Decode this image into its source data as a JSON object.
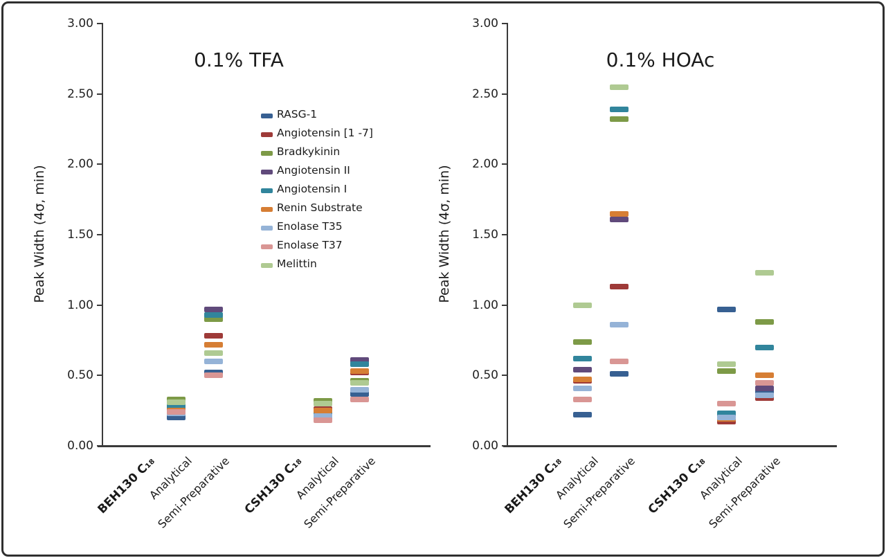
{
  "figure": {
    "ylabel": "Peak Width (4σ, min)",
    "y_tick_labels": [
      "0.00",
      "0.50",
      "1.00",
      "1.50",
      "2.00",
      "2.50",
      "3.00"
    ]
  },
  "chart_data": [
    {
      "type": "scatter",
      "title": "0.1% TFA",
      "ylabel": "Peak Width (4σ, min)",
      "ylim": [
        0.0,
        3.0
      ],
      "yticks": [
        0.0,
        0.5,
        1.0,
        1.5,
        2.0,
        2.5,
        3.0
      ],
      "grid": false,
      "legend_position": "inside-upper-right",
      "legend_visible": true,
      "x_tick_labels": [
        {
          "text": "BEH130 C₁₈",
          "bold": true
        },
        {
          "text": "Analytical",
          "bold": false
        },
        {
          "text": "Semi-Preparative",
          "bold": false
        },
        {
          "text": "CSH130 C₁₈",
          "bold": true
        },
        {
          "text": "Analytical",
          "bold": false
        },
        {
          "text": "Semi-Preparative",
          "bold": false
        }
      ],
      "categories": [
        "BEH130 C₁₈ Analytical",
        "BEH130 C₁₈ Semi-Preparative",
        "CSH130 C₁₈ Analytical",
        "CSH130 C₁₈ Semi-Preparative"
      ],
      "series": [
        {
          "name": "RASG-1",
          "color": "#376092",
          "values": [
            0.2,
            0.52,
            0.2,
            0.37
          ]
        },
        {
          "name": "Angiotensin [1 -7]",
          "color": "#9E3A38",
          "values": [
            0.24,
            0.78,
            0.26,
            0.52
          ]
        },
        {
          "name": "Bradkykinin",
          "color": "#7D9A47",
          "values": [
            0.33,
            0.9,
            0.32,
            0.46
          ]
        },
        {
          "name": "Angiotensin II",
          "color": "#604A7B",
          "values": [
            0.27,
            0.97,
            0.24,
            0.61
          ]
        },
        {
          "name": "Angiotensin I",
          "color": "#31859C",
          "values": [
            0.28,
            0.93,
            0.23,
            0.58
          ]
        },
        {
          "name": "Renin Substrate",
          "color": "#D67E34",
          "values": [
            0.25,
            0.72,
            0.25,
            0.53
          ]
        },
        {
          "name": "Enolase T35",
          "color": "#95B3D7",
          "values": [
            0.23,
            0.6,
            0.21,
            0.4
          ]
        },
        {
          "name": "Enolase T37",
          "color": "#D99694",
          "values": [
            0.24,
            0.5,
            0.18,
            0.33
          ]
        },
        {
          "name": "Melittin",
          "color": "#AFCA92",
          "values": [
            0.31,
            0.66,
            0.3,
            0.45
          ]
        }
      ]
    },
    {
      "type": "scatter",
      "title": "0.1% HOAc",
      "ylabel": "Peak Width (4σ, min)",
      "ylim": [
        0.0,
        3.0
      ],
      "yticks": [
        0.0,
        0.5,
        1.0,
        1.5,
        2.0,
        2.5,
        3.0
      ],
      "grid": false,
      "legend_visible": false,
      "x_tick_labels": [
        {
          "text": "BEH130 C₁₈",
          "bold": true
        },
        {
          "text": "Analytical",
          "bold": false
        },
        {
          "text": "Semi-Preparative",
          "bold": false
        },
        {
          "text": "CSH130 C₁₈",
          "bold": true
        },
        {
          "text": "Analytical",
          "bold": false
        },
        {
          "text": "Semi-Preparative",
          "bold": false
        }
      ],
      "categories": [
        "BEH130 C₁₈ Analytical",
        "BEH130 C₁₈ Semi-Preparative",
        "CSH130 C₁₈ Analytical",
        "CSH130 C₁₈ Semi-Preparative"
      ],
      "series": [
        {
          "name": "RASG-1",
          "color": "#376092",
          "values": [
            0.22,
            0.51,
            0.97,
            0.39
          ]
        },
        {
          "name": "Angiotensin [1 -7]",
          "color": "#9E3A38",
          "values": [
            0.46,
            1.13,
            0.17,
            0.34
          ]
        },
        {
          "name": "Bradkykinin",
          "color": "#7D9A47",
          "values": [
            0.74,
            2.32,
            0.53,
            0.88
          ]
        },
        {
          "name": "Angiotensin II",
          "color": "#604A7B",
          "values": [
            0.54,
            1.61,
            0.21,
            0.41
          ]
        },
        {
          "name": "Angiotensin I",
          "color": "#31859C",
          "values": [
            0.62,
            2.39,
            0.23,
            0.7
          ]
        },
        {
          "name": "Renin Substrate",
          "color": "#D67E34",
          "values": [
            0.47,
            1.65,
            0.19,
            0.5
          ]
        },
        {
          "name": "Enolase T35",
          "color": "#95B3D7",
          "values": [
            0.41,
            0.86,
            0.2,
            0.36
          ]
        },
        {
          "name": "Enolase T37",
          "color": "#D99694",
          "values": [
            0.33,
            0.6,
            0.3,
            0.45
          ]
        },
        {
          "name": "Melittin",
          "color": "#AFCA92",
          "values": [
            1.0,
            2.55,
            0.58,
            1.23
          ]
        }
      ]
    }
  ]
}
